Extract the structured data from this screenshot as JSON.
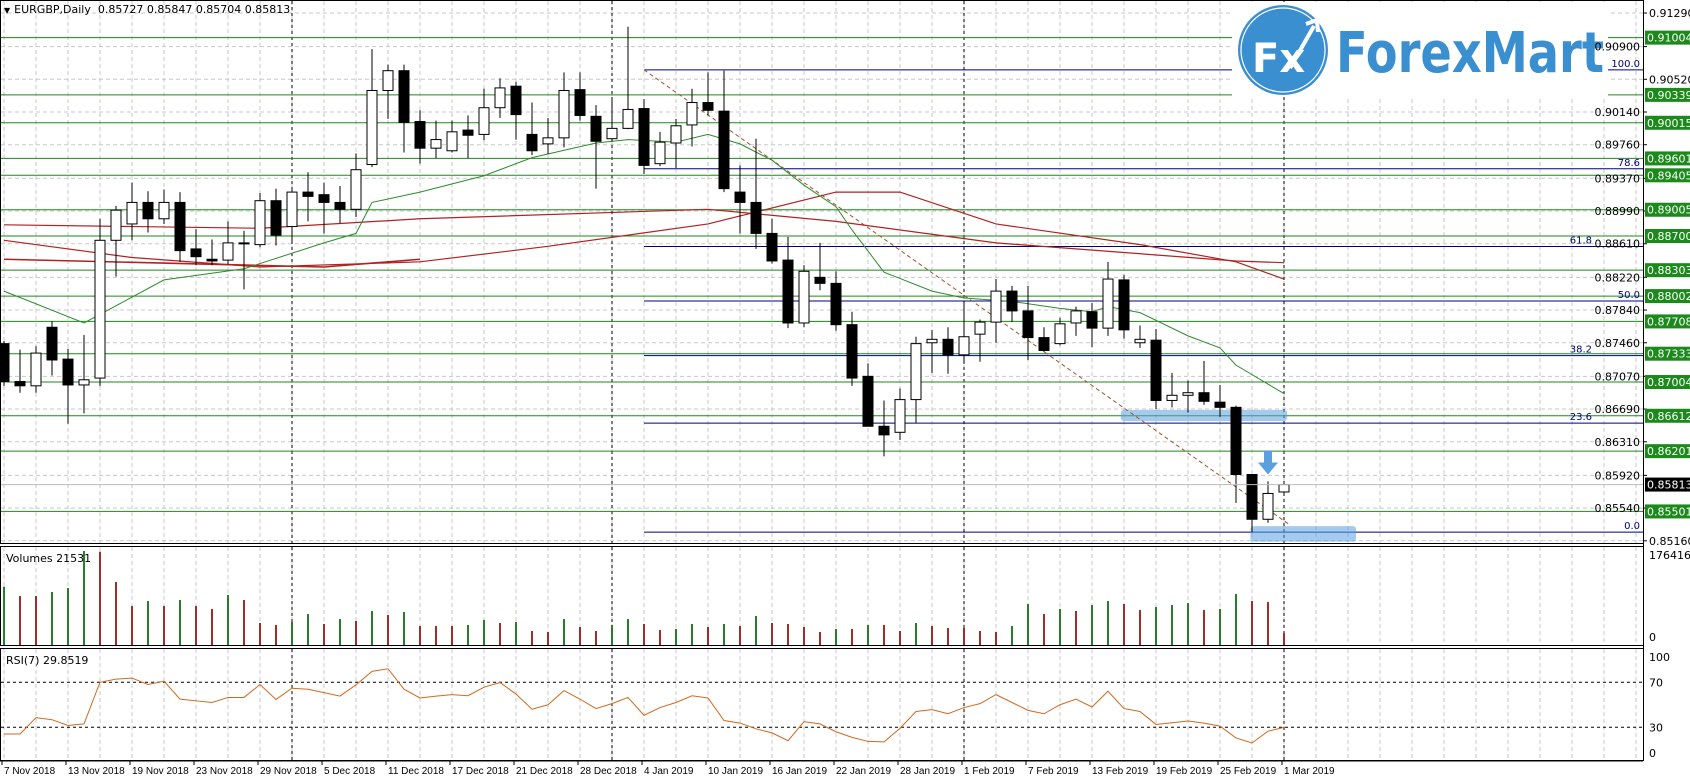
{
  "header": {
    "symbol_period": "EURGBP,Daily",
    "ohlc": "0.85727 0.85847 0.85704 0.85813"
  },
  "volumes_label": "Volumes 21531",
  "rsi_label": "RSI(7) 29.8519",
  "logo": {
    "text": "ForexMart",
    "badge": "Fx",
    "color": "#3a8fd1"
  },
  "colors": {
    "level": "#1b8a1b",
    "fib": "#000080",
    "ma_fast": "#2e8b2e",
    "ma_slow": "#b22222",
    "rsi": "#d2691e",
    "vol_up": "#2a7d2a",
    "vol_down": "#a52a2a",
    "trend": "#a0522d",
    "highlight": "#5aa0e0"
  },
  "chart_data": {
    "type": "candlestick",
    "title": "EURGBP,Daily",
    "ylim": [
      0.8516,
      0.9129
    ],
    "price_axis": {
      "ticks": [
        "0.91290",
        "0.90900",
        "0.90520",
        "0.90140",
        "0.89760",
        "0.89370",
        "0.88990",
        "0.88610",
        "0.88220",
        "0.87840",
        "0.87460",
        "0.87070",
        "0.86690",
        "0.86310",
        "0.85920",
        "0.85540",
        "0.85160"
      ]
    },
    "date_labels": [
      {
        "bar": 0,
        "text": "7 Nov 2018"
      },
      {
        "bar": 4,
        "text": "13 Nov 2018"
      },
      {
        "bar": 8,
        "text": "19 Nov 2018"
      },
      {
        "bar": 12,
        "text": "23 Nov 2018"
      },
      {
        "bar": 16,
        "text": "29 Nov 2018"
      },
      {
        "bar": 20,
        "text": "5 Dec 2018"
      },
      {
        "bar": 24,
        "text": "11 Dec 2018"
      },
      {
        "bar": 28,
        "text": "17 Dec 2018"
      },
      {
        "bar": 32,
        "text": "21 Dec 2018"
      },
      {
        "bar": 36,
        "text": "28 Dec 2018"
      },
      {
        "bar": 40,
        "text": "4 Jan 2019"
      },
      {
        "bar": 44,
        "text": "10 Jan 2019"
      },
      {
        "bar": 48,
        "text": "16 Jan 2019"
      },
      {
        "bar": 52,
        "text": "22 Jan 2019"
      },
      {
        "bar": 56,
        "text": "28 Jan 2019"
      },
      {
        "bar": 60,
        "text": "1 Feb 2019"
      },
      {
        "bar": 64,
        "text": "7 Feb 2019"
      },
      {
        "bar": 68,
        "text": "13 Feb 2019"
      },
      {
        "bar": 72,
        "text": "19 Feb 2019"
      },
      {
        "bar": 76,
        "text": "25 Feb 2019"
      },
      {
        "bar": 80,
        "text": "1 Mar 2019"
      }
    ],
    "period_separators": [
      18,
      38,
      60,
      80
    ],
    "ohlc": [
      [
        0.8745,
        0.8748,
        0.8696,
        0.8701
      ],
      [
        0.8701,
        0.8738,
        0.8688,
        0.8696
      ],
      [
        0.8696,
        0.8742,
        0.8688,
        0.8734
      ],
      [
        0.8764,
        0.8771,
        0.8708,
        0.8726
      ],
      [
        0.8727,
        0.8739,
        0.8652,
        0.8697
      ],
      [
        0.8697,
        0.8755,
        0.8664,
        0.8703
      ],
      [
        0.8705,
        0.889,
        0.8696,
        0.8865
      ],
      [
        0.8865,
        0.8905,
        0.8823,
        0.89
      ],
      [
        0.8884,
        0.8932,
        0.8865,
        0.8909
      ],
      [
        0.8909,
        0.8922,
        0.8874,
        0.889
      ],
      [
        0.889,
        0.8924,
        0.8884,
        0.8909
      ],
      [
        0.8909,
        0.8921,
        0.884,
        0.8853
      ],
      [
        0.8855,
        0.8878,
        0.8836,
        0.8846
      ],
      [
        0.8843,
        0.8866,
        0.8836,
        0.8841
      ],
      [
        0.8842,
        0.8887,
        0.8837,
        0.8862
      ],
      [
        0.8862,
        0.8876,
        0.8808,
        0.8861
      ],
      [
        0.886,
        0.892,
        0.8857,
        0.8911
      ],
      [
        0.8911,
        0.8925,
        0.8859,
        0.8871
      ],
      [
        0.8881,
        0.8924,
        0.8862,
        0.8921
      ],
      [
        0.8921,
        0.8944,
        0.8887,
        0.8916
      ],
      [
        0.8918,
        0.8932,
        0.8873,
        0.8909
      ],
      [
        0.8909,
        0.8928,
        0.8885,
        0.8901
      ],
      [
        0.8901,
        0.8966,
        0.8892,
        0.8947
      ],
      [
        0.8953,
        0.9087,
        0.895,
        0.9039
      ],
      [
        0.9039,
        0.9069,
        0.9006,
        0.9062
      ],
      [
        0.9062,
        0.9069,
        0.8967,
        0.9002
      ],
      [
        0.9003,
        0.9016,
        0.8954,
        0.8972
      ],
      [
        0.8972,
        0.9004,
        0.896,
        0.8982
      ],
      [
        0.8969,
        0.9004,
        0.8967,
        0.8991
      ],
      [
        0.8993,
        0.901,
        0.896,
        0.8987
      ],
      [
        0.8988,
        0.9041,
        0.8981,
        0.9019
      ],
      [
        0.9019,
        0.9053,
        0.9007,
        0.9042
      ],
      [
        0.9044,
        0.9049,
        0.8982,
        0.9011
      ],
      [
        0.8988,
        0.9025,
        0.8964,
        0.8969
      ],
      [
        0.8977,
        0.9007,
        0.8965,
        0.8984
      ],
      [
        0.8984,
        0.906,
        0.8973,
        0.9039
      ],
      [
        0.904,
        0.906,
        0.9004,
        0.901
      ],
      [
        0.9009,
        0.9022,
        0.8925,
        0.898
      ],
      [
        0.8983,
        0.9031,
        0.898,
        0.8995
      ],
      [
        0.8995,
        0.9113,
        0.8994,
        0.9017
      ],
      [
        0.9018,
        0.9029,
        0.8942,
        0.8952
      ],
      [
        0.8954,
        0.8991,
        0.8951,
        0.8979
      ],
      [
        0.8978,
        0.9006,
        0.8949,
        0.8998
      ],
      [
        0.8999,
        0.9041,
        0.8974,
        0.9025
      ],
      [
        0.9025,
        0.906,
        0.901,
        0.9016
      ],
      [
        0.9015,
        0.9062,
        0.8921,
        0.8925
      ],
      [
        0.8921,
        0.8952,
        0.8873,
        0.8909
      ],
      [
        0.8909,
        0.8983,
        0.8855,
        0.8873
      ],
      [
        0.8873,
        0.889,
        0.8838,
        0.8841
      ],
      [
        0.8842,
        0.8869,
        0.8763,
        0.8769
      ],
      [
        0.8769,
        0.8836,
        0.8764,
        0.8829
      ],
      [
        0.8822,
        0.8862,
        0.8807,
        0.8815
      ],
      [
        0.8815,
        0.8829,
        0.876,
        0.8767
      ],
      [
        0.8767,
        0.8782,
        0.8696,
        0.8705
      ],
      [
        0.8707,
        0.8722,
        0.8649,
        0.8649
      ],
      [
        0.8649,
        0.8679,
        0.8614,
        0.8639
      ],
      [
        0.8642,
        0.8693,
        0.8633,
        0.868
      ],
      [
        0.868,
        0.8753,
        0.8653,
        0.8745
      ],
      [
        0.8746,
        0.8761,
        0.8711,
        0.875
      ],
      [
        0.875,
        0.8764,
        0.871,
        0.8732
      ],
      [
        0.8732,
        0.8795,
        0.8722,
        0.8753
      ],
      [
        0.8756,
        0.8773,
        0.8724,
        0.877
      ],
      [
        0.877,
        0.882,
        0.8746,
        0.8806
      ],
      [
        0.8806,
        0.8812,
        0.877,
        0.8783
      ],
      [
        0.8783,
        0.8812,
        0.8726,
        0.8752
      ],
      [
        0.8752,
        0.8764,
        0.8735,
        0.8737
      ],
      [
        0.8745,
        0.8775,
        0.8743,
        0.8768
      ],
      [
        0.8769,
        0.8788,
        0.8754,
        0.8783
      ],
      [
        0.8782,
        0.8792,
        0.8741,
        0.8763
      ],
      [
        0.8763,
        0.884,
        0.8754,
        0.882
      ],
      [
        0.8819,
        0.8825,
        0.8751,
        0.8761
      ],
      [
        0.8746,
        0.8766,
        0.874,
        0.875
      ],
      [
        0.8749,
        0.8762,
        0.8669,
        0.8679
      ],
      [
        0.8679,
        0.8711,
        0.8671,
        0.8685
      ],
      [
        0.8685,
        0.8702,
        0.8665,
        0.8688
      ],
      [
        0.8688,
        0.8725,
        0.8674,
        0.8678
      ],
      [
        0.8677,
        0.8697,
        0.866,
        0.8671
      ],
      [
        0.8671,
        0.8673,
        0.856,
        0.8593
      ],
      [
        0.8593,
        0.8593,
        0.8526,
        0.8541
      ],
      [
        0.8541,
        0.8585,
        0.8537,
        0.8571
      ],
      [
        0.85727,
        0.85847,
        0.85704,
        0.85813
      ]
    ],
    "ma_fast": [
      [
        0,
        0.8806
      ],
      [
        5,
        0.8769
      ],
      [
        10,
        0.8819
      ],
      [
        15,
        0.8832
      ],
      [
        20,
        0.8862
      ],
      [
        22,
        0.8873
      ],
      [
        23,
        0.8909
      ],
      [
        26,
        0.8921
      ],
      [
        30,
        0.894
      ],
      [
        33,
        0.8961
      ],
      [
        37,
        0.8978
      ],
      [
        39,
        0.8982
      ],
      [
        42,
        0.8979
      ],
      [
        44,
        0.8988
      ],
      [
        46,
        0.8977
      ],
      [
        48,
        0.8958
      ],
      [
        50,
        0.8929
      ],
      [
        52,
        0.8904
      ],
      [
        53,
        0.8877
      ],
      [
        55,
        0.8828
      ],
      [
        58,
        0.8806
      ],
      [
        60,
        0.8798
      ],
      [
        63,
        0.8794
      ],
      [
        66,
        0.8786
      ],
      [
        68,
        0.8782
      ],
      [
        69,
        0.8788
      ],
      [
        71,
        0.8781
      ],
      [
        74,
        0.8754
      ],
      [
        76,
        0.874
      ],
      [
        77,
        0.872
      ],
      [
        78,
        0.8709
      ],
      [
        80,
        0.8687
      ]
    ],
    "ma_mid": [
      [
        0,
        0.8865
      ],
      [
        8,
        0.8845
      ],
      [
        16,
        0.8834
      ],
      [
        26,
        0.884
      ],
      [
        34,
        0.8858
      ],
      [
        44,
        0.8884
      ],
      [
        52,
        0.8921
      ],
      [
        56,
        0.8921
      ],
      [
        62,
        0.8884
      ],
      [
        71,
        0.886
      ],
      [
        77,
        0.884
      ],
      [
        80,
        0.882
      ]
    ],
    "ma_slow": [
      [
        0,
        0.8883
      ],
      [
        16,
        0.8879
      ],
      [
        26,
        0.889
      ],
      [
        44,
        0.8901
      ],
      [
        52,
        0.8887
      ],
      [
        62,
        0.8862
      ],
      [
        77,
        0.8841
      ],
      [
        80,
        0.8839
      ]
    ],
    "ma_early": [
      [
        0,
        0.8843
      ],
      [
        20,
        0.8834
      ],
      [
        26,
        0.8843
      ]
    ],
    "levels": [
      "0.91004",
      "0.90339",
      "0.90015",
      "0.89601",
      "0.89405",
      "0.89005",
      "0.88700",
      "0.88303",
      "0.88002",
      "0.87708",
      "0.87333",
      "0.87004",
      "0.86612",
      "0.86201",
      "0.85501"
    ],
    "current_price": "0.85813",
    "fibonacci": {
      "start_bar": 40,
      "high": 0.9063,
      "low": 0.8526,
      "levels": [
        {
          "ratio": 1.0,
          "label": "100.0"
        },
        {
          "ratio": 0.786,
          "label": "78.6"
        },
        {
          "ratio": 0.618,
          "label": "61.8"
        },
        {
          "ratio": 0.5,
          "label": "50.0"
        },
        {
          "ratio": 0.382,
          "label": "38.2"
        },
        {
          "ratio": 0.236,
          "label": "23.6"
        },
        {
          "ratio": 0.0,
          "label": "0.0"
        }
      ]
    },
    "trendline": [
      [
        40,
        0.9063
      ],
      [
        80.4,
        0.8534
      ]
    ],
    "highlights": [
      {
        "bars": [
          69.8,
          80.2
        ],
        "prices": [
          0.8655,
          0.8668
        ]
      },
      {
        "bars": [
          77.9,
          84.5
        ],
        "prices": [
          0.8515,
          0.8533
        ]
      }
    ],
    "arrow": {
      "bar": 79,
      "from": 0.8621,
      "to": 0.8593
    },
    "volume": {
      "max_label": "176416",
      "zero_label": "0",
      "max": 176416,
      "values": [
        106050,
        89082,
        89082,
        96354,
        103626,
        170892,
        169680,
        114534,
        70902,
        79992,
        70902,
        81810,
        70902,
        65448,
        90900,
        81810,
        39996,
        36360,
        41814,
        56358,
        38178,
        47268,
        43632,
        61812,
        54540,
        59994,
        34542,
        34542,
        34542,
        36360,
        45450,
        39996,
        41814,
        25452,
        23634,
        47268,
        32724,
        25452,
        36360,
        47268,
        38178,
        27270,
        29088,
        38178,
        32724,
        38178,
        34542,
        52722,
        39996,
        38178,
        32724,
        23634,
        29088,
        29088,
        36360,
        36360,
        25452,
        39996,
        34542,
        30906,
        30906,
        25452,
        23634,
        34542,
        74538,
        56358,
        65448,
        61812,
        72720,
        79992,
        74538,
        63630,
        69084,
        72720,
        76356,
        63630,
        65448,
        92718,
        79992,
        78174,
        21531
      ]
    },
    "rsi": {
      "period": 7,
      "axis_labels": [
        "100",
        "70",
        "30",
        "0"
      ],
      "levels": [
        70,
        30
      ],
      "values": [
        24,
        24,
        38.5,
        36.7,
        31.6,
        33,
        70,
        72.8,
        73.7,
        68,
        71,
        55,
        53.5,
        52,
        56.5,
        56.5,
        68,
        54.7,
        64.7,
        63.8,
        60.8,
        57.7,
        67.7,
        79.7,
        82,
        63.8,
        56,
        57.7,
        59,
        58,
        65.6,
        69.8,
        59.5,
        46,
        50,
        62.6,
        55,
        46.6,
        51,
        56.5,
        40.6,
        47.5,
        52,
        58,
        56,
        36,
        33.7,
        28.6,
        25,
        18,
        35,
        33,
        26,
        21,
        17.4,
        17,
        29,
        44,
        45.7,
        42,
        47.5,
        51,
        59,
        52,
        45,
        42,
        50,
        55,
        48,
        62,
        46.6,
        44,
        32.5,
        34,
        35.5,
        33.7,
        31,
        20.5,
        16,
        26.5,
        29.85
      ]
    }
  }
}
